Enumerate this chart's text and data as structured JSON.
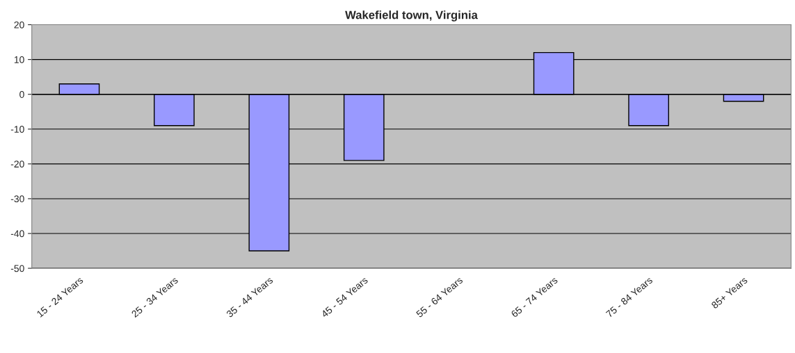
{
  "chart_data": {
    "type": "bar",
    "title": "Wakefield town, Virginia",
    "categories": [
      "15 - 24 Years",
      "25 - 34 Years",
      "35 - 44 Years",
      "45 - 54 Years",
      "55 - 64 Years",
      "65 - 74 Years",
      "75 - 84 Years",
      "85+ Years"
    ],
    "values": [
      3,
      -9,
      -45,
      -19,
      0,
      12,
      -9,
      -2
    ],
    "color": "#9999ff",
    "ylim": [
      -50,
      20
    ],
    "yticks": [
      -50,
      -40,
      -30,
      -20,
      -10,
      0,
      10,
      20
    ],
    "grid": "y",
    "legend": false
  }
}
